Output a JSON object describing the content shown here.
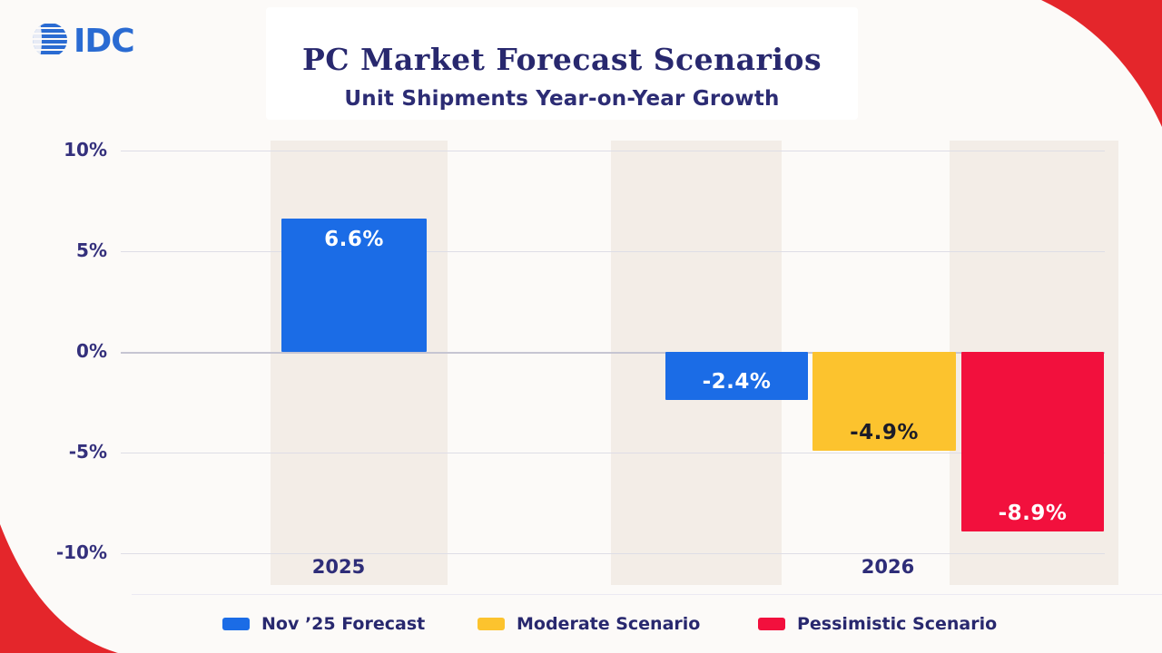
{
  "logo": {
    "text": "IDC",
    "color": "#2a6bd2"
  },
  "header": {
    "title": "PC Market Forecast Scenarios",
    "subtitle": "Unit Shipments Year-on-Year Growth"
  },
  "chart_data": {
    "type": "bar",
    "title": "PC Market Forecast Scenarios",
    "subtitle": "Unit Shipments Year-on-Year Growth",
    "categories": [
      "2025",
      "2026"
    ],
    "ylim": [
      -10,
      10
    ],
    "grid": true,
    "yticks": [
      {
        "value": 10,
        "label": "10%"
      },
      {
        "value": 5,
        "label": "5%"
      },
      {
        "value": 0,
        "label": "0%"
      },
      {
        "value": -5,
        "label": "-5%"
      },
      {
        "value": -10,
        "label": "-10%"
      }
    ],
    "series": [
      {
        "name": "Nov ’25 Forecast",
        "color": "#1b6ce6",
        "label_color": "#ffffff"
      },
      {
        "name": "Moderate Scenario",
        "color": "#fcc32e",
        "label_color": "#1c1c28"
      },
      {
        "name": "Pessimistic Scenario",
        "color": "#f2103d",
        "label_color": "#ffffff"
      }
    ],
    "bars": [
      {
        "category": "2025",
        "series": 0,
        "value": 6.6,
        "label": "6.6%"
      },
      {
        "category": "2026",
        "series": 0,
        "value": -2.4,
        "label": "-2.4%"
      },
      {
        "category": "2026",
        "series": 1,
        "value": -4.9,
        "label": "-4.9%"
      },
      {
        "category": "2026",
        "series": 2,
        "value": -8.9,
        "label": "-8.9%"
      }
    ],
    "legend_position": "bottom"
  },
  "decor": {
    "corner_red": "#e4262b",
    "band_color": "#f3ede7"
  }
}
